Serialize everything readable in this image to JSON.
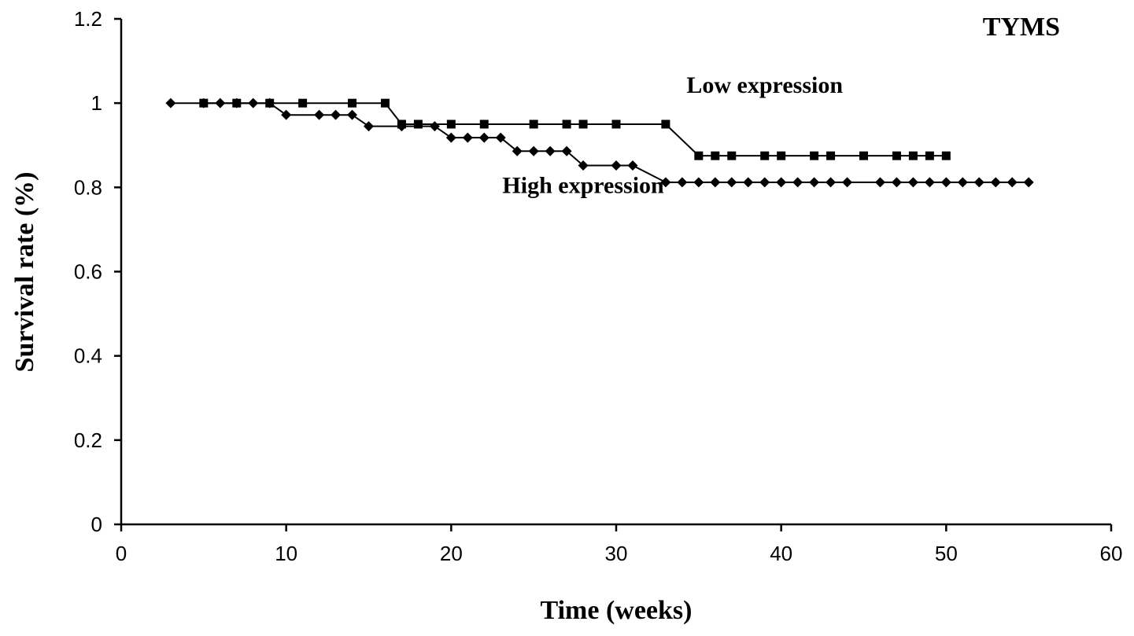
{
  "chart_data": {
    "type": "line",
    "title": "TYMS",
    "xlabel": "Time (weeks)",
    "ylabel": "Survival rate (%)",
    "xlim": [
      0,
      60
    ],
    "ylim": [
      0,
      1.2
    ],
    "xticks": [
      0,
      10,
      20,
      30,
      40,
      50,
      60
    ],
    "yticks": [
      0,
      0.2,
      0.4,
      0.6,
      0.8,
      1,
      1.2
    ],
    "xtick_labels": [
      "0",
      "10",
      "20",
      "30",
      "40",
      "50",
      "60"
    ],
    "ytick_labels": [
      "0",
      "0.2",
      "0.4",
      "0.6",
      "0.8",
      "1",
      "1.2"
    ],
    "grid": false,
    "legend": "none",
    "step": true,
    "series": [
      {
        "name": "Low expression",
        "marker": "square",
        "color": "#000000",
        "x": [
          5,
          7,
          9,
          11,
          14,
          16,
          17,
          18,
          20,
          22,
          25,
          27,
          28,
          30,
          33,
          35,
          36,
          37,
          39,
          40,
          42,
          43,
          45,
          47,
          48,
          49,
          50
        ],
        "y": [
          1,
          1,
          1,
          1,
          1,
          1,
          0.95,
          0.95,
          0.95,
          0.95,
          0.95,
          0.95,
          0.95,
          0.95,
          0.95,
          0.875,
          0.875,
          0.875,
          0.875,
          0.875,
          0.875,
          0.875,
          0.875,
          0.875,
          0.875,
          0.875,
          0.875
        ]
      },
      {
        "name": "High expression",
        "marker": "diamond",
        "color": "#000000",
        "x": [
          3,
          5,
          6,
          7,
          8,
          9,
          10,
          12,
          13,
          14,
          15,
          17,
          19,
          20,
          21,
          22,
          23,
          24,
          25,
          26,
          27,
          28,
          30,
          31,
          33,
          34,
          35,
          36,
          37,
          38,
          39,
          40,
          41,
          42,
          43,
          44,
          46,
          47,
          48,
          49,
          50,
          51,
          52,
          53,
          54,
          55
        ],
        "y": [
          1,
          1,
          1,
          1,
          1,
          1,
          0.972,
          0.972,
          0.972,
          0.972,
          0.945,
          0.945,
          0.945,
          0.918,
          0.918,
          0.918,
          0.918,
          0.886,
          0.886,
          0.886,
          0.886,
          0.852,
          0.852,
          0.852,
          0.812,
          0.812,
          0.812,
          0.812,
          0.812,
          0.812,
          0.812,
          0.812,
          0.812,
          0.812,
          0.812,
          0.812,
          0.812,
          0.812,
          0.812,
          0.812,
          0.812,
          0.812,
          0.812,
          0.812,
          0.812,
          0.812
        ]
      }
    ],
    "annotations": [
      {
        "text": "Low expression",
        "x": 39,
        "y": 1.025
      },
      {
        "text": "High expression",
        "x": 28,
        "y": 0.787
      }
    ]
  }
}
